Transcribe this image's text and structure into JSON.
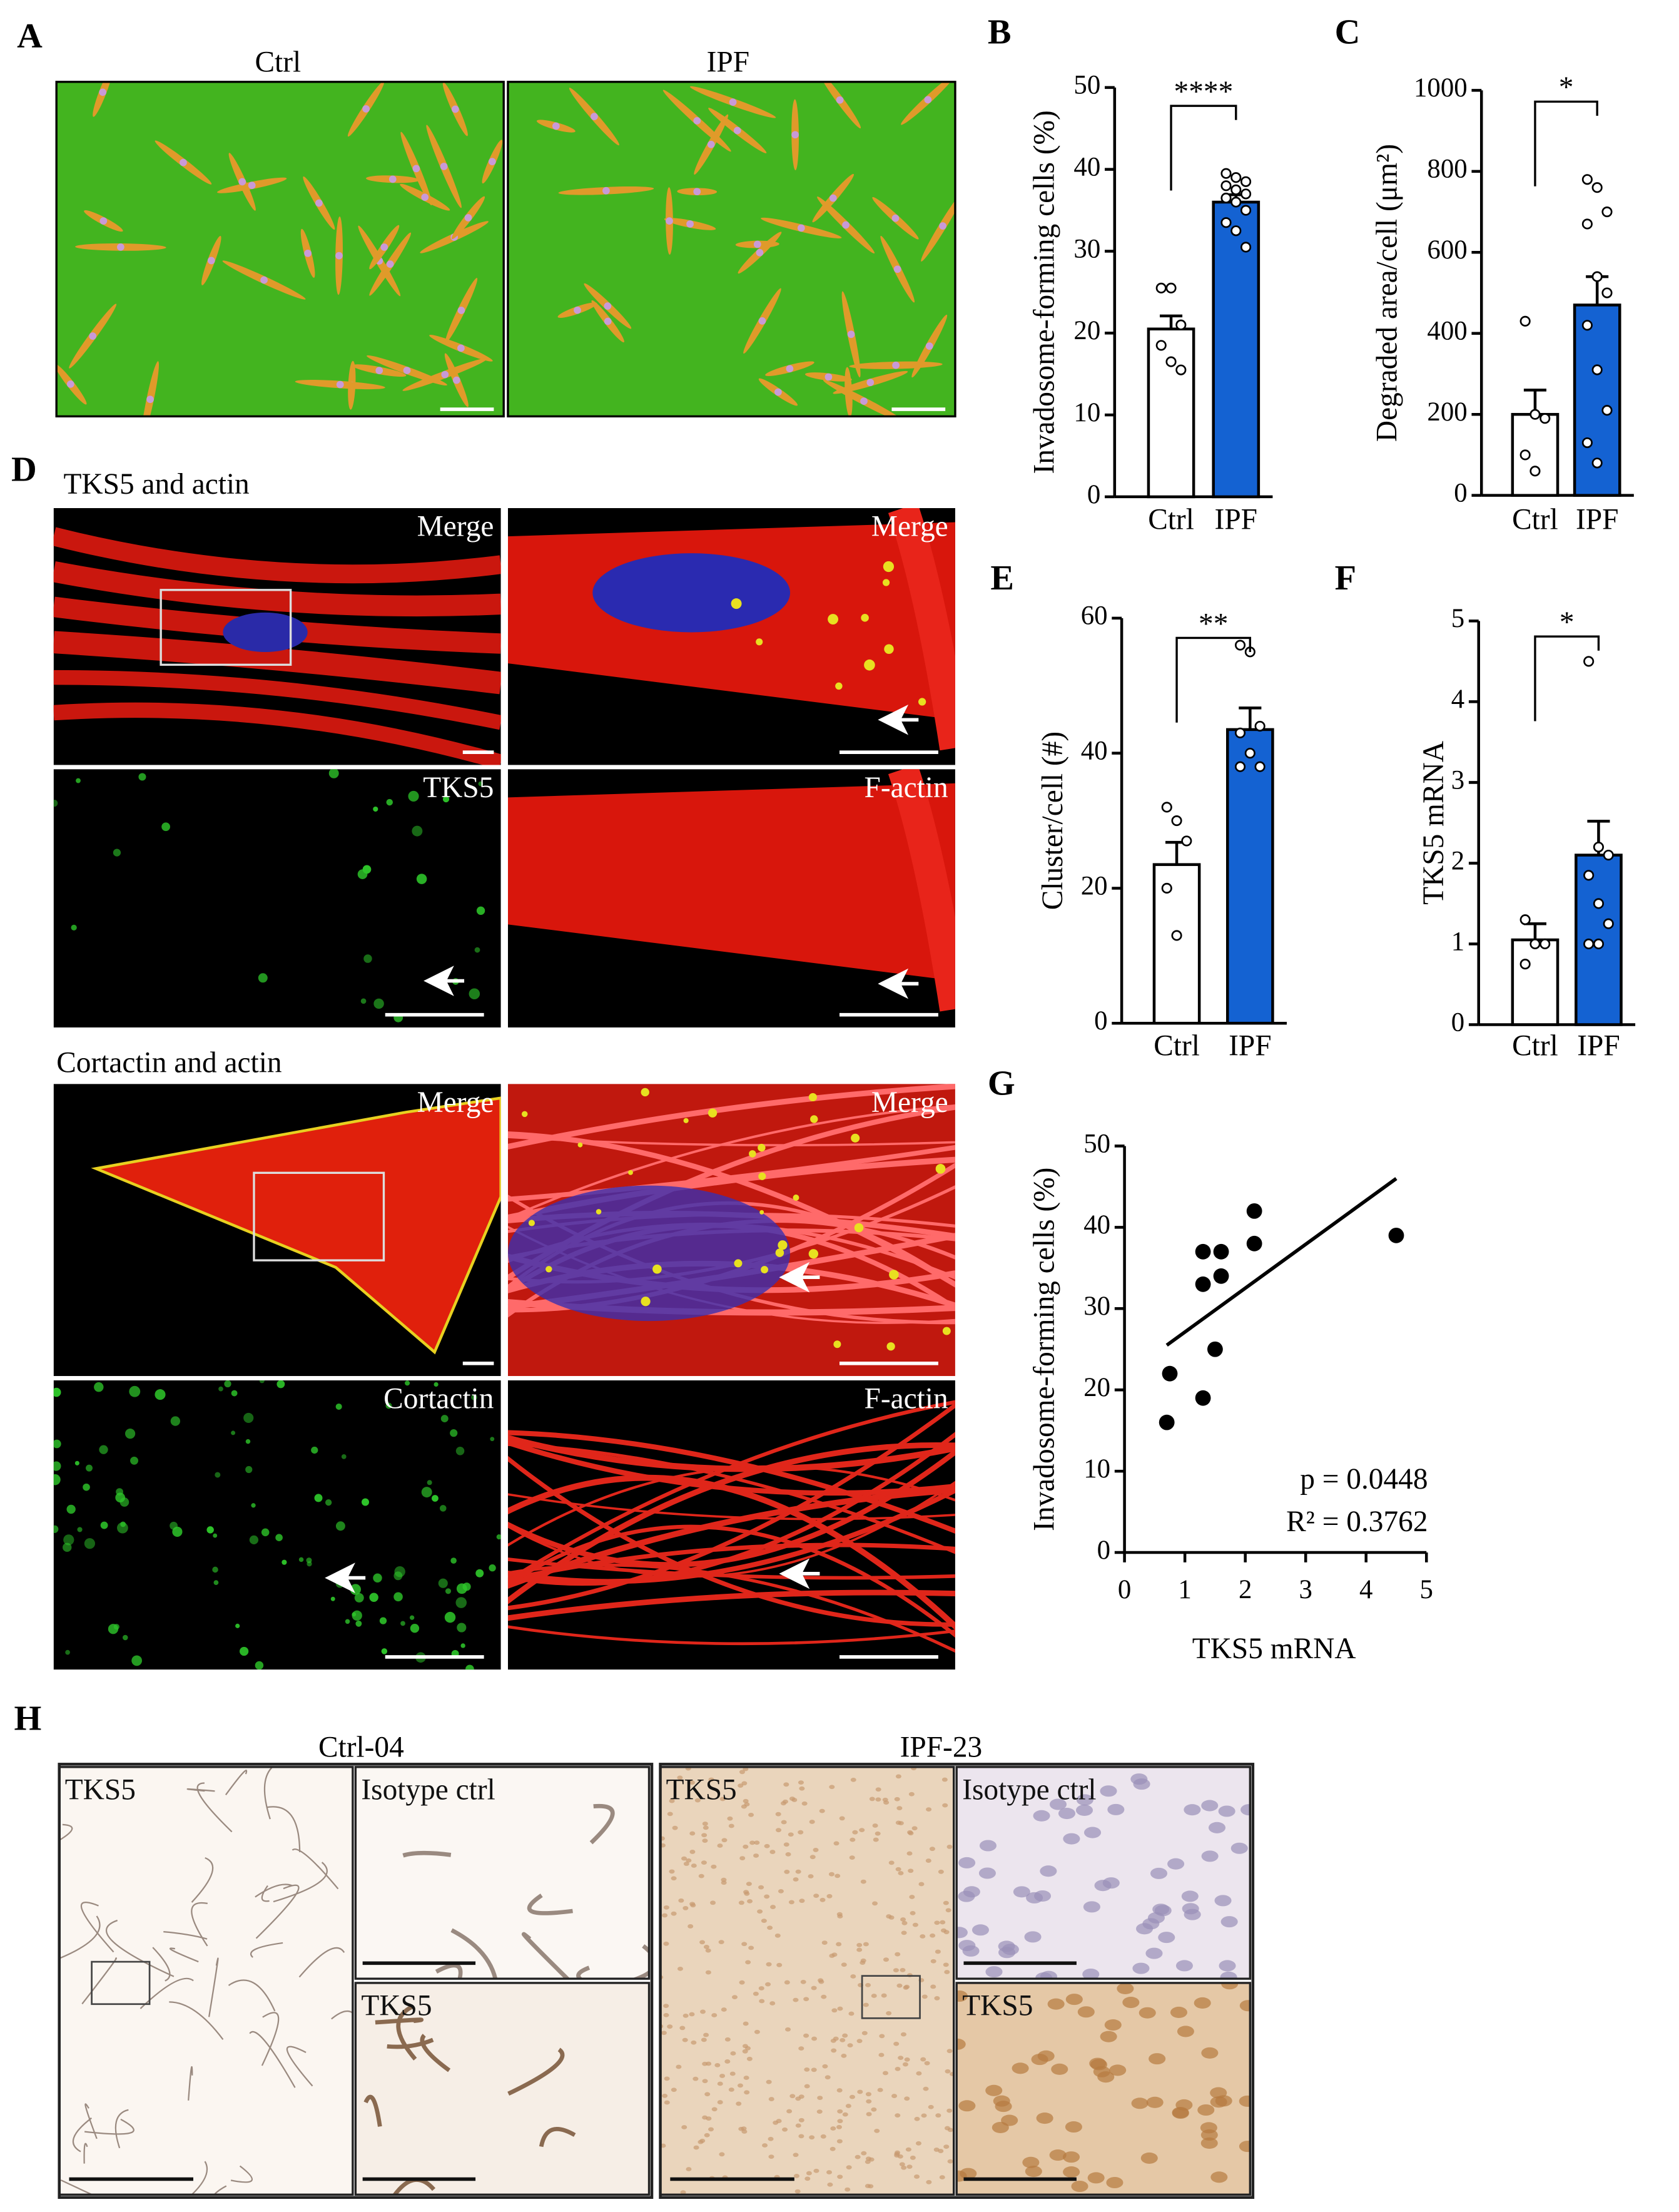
{
  "figure": {
    "A": {
      "letter": "A",
      "titles": [
        "Ctrl",
        "IPF"
      ]
    },
    "D": {
      "letter": "D",
      "sections": [
        {
          "title": "TKS5 and actin",
          "labels": [
            "Merge",
            "Merge",
            "TKS5",
            "F-actin"
          ]
        },
        {
          "title": "Cortactin and actin",
          "labels": [
            "Merge",
            "Merge",
            "Cortactin",
            "F-actin"
          ]
        }
      ]
    },
    "H": {
      "letter": "H",
      "groups": [
        {
          "title": "Ctrl-04",
          "labels": [
            "TKS5",
            "Isotype ctrl",
            "TKS5"
          ]
        },
        {
          "title": "IPF-23",
          "labels": [
            "TKS5",
            "Isotype ctrl",
            "TKS5"
          ]
        }
      ]
    }
  },
  "chart_data": [
    {
      "type": "bar",
      "letter": "B",
      "categories": [
        "Ctrl",
        "IPF"
      ],
      "values": [
        20.5,
        36
      ],
      "errors": [
        1.6,
        0.9
      ],
      "points": [
        [
          25.5,
          25.5,
          21,
          18.5,
          16.5,
          15.5
        ],
        [
          39.5,
          39,
          38.5,
          38,
          37.5,
          37,
          36.5,
          36,
          35,
          33.5,
          32.5,
          30.5
        ]
      ],
      "colors": [
        "#ffffff",
        "#1462d2"
      ],
      "ylabel": "Invadosome-forming cells (%)",
      "significance": "****",
      "ylim": [
        0,
        50
      ],
      "yticks": [
        0,
        10,
        20,
        30,
        40,
        50
      ]
    },
    {
      "type": "bar",
      "letter": "C",
      "categories": [
        "Ctrl",
        "IPF"
      ],
      "values": [
        200,
        470
      ],
      "errors": [
        60,
        70
      ],
      "points": [
        [
          430,
          200,
          190,
          100,
          60
        ],
        [
          780,
          760,
          700,
          670,
          540,
          500,
          420,
          310,
          210,
          130,
          80
        ]
      ],
      "colors": [
        "#ffffff",
        "#1462d2"
      ],
      "ylabel": "Degraded area/cell (μm²)",
      "significance": "*",
      "ylim": [
        0,
        1000
      ],
      "yticks": [
        0,
        200,
        400,
        600,
        800,
        1000
      ]
    },
    {
      "type": "bar",
      "letter": "E",
      "categories": [
        "Ctrl",
        "IPF"
      ],
      "values": [
        23.5,
        43.5
      ],
      "errors": [
        3.3,
        3.2
      ],
      "points": [
        [
          32,
          30,
          27,
          20,
          13
        ],
        [
          56,
          55,
          44,
          43,
          40,
          38,
          38
        ]
      ],
      "colors": [
        "#ffffff",
        "#1462d2"
      ],
      "ylabel": "Cluster/cell (#)",
      "significance": "**",
      "ylim": [
        0,
        60
      ],
      "yticks": [
        0,
        20,
        40,
        60
      ]
    },
    {
      "type": "bar",
      "letter": "F",
      "categories": [
        "Ctrl",
        "IPF"
      ],
      "values": [
        1.05,
        2.1
      ],
      "errors": [
        0.2,
        0.42
      ],
      "points": [
        [
          1.3,
          1.0,
          1.0,
          0.75
        ],
        [
          4.5,
          2.2,
          2.1,
          1.85,
          1.5,
          1.25,
          1.0,
          1.0
        ]
      ],
      "colors": [
        "#ffffff",
        "#1462d2"
      ],
      "ylabel": "TKS5 mRNA",
      "significance": "*",
      "ylim": [
        0,
        5
      ],
      "yticks": [
        0,
        1,
        2,
        3,
        4,
        5
      ]
    },
    {
      "type": "scatter",
      "letter": "G",
      "x": [
        0.7,
        0.75,
        1.3,
        1.3,
        1.3,
        1.6,
        1.6,
        1.5,
        2.15,
        2.15,
        4.5
      ],
      "y": [
        16,
        22,
        19,
        33,
        37,
        37,
        34,
        25,
        42,
        38,
        39
      ],
      "color": "#000000",
      "fit": {
        "x": [
          0.7,
          4.5
        ],
        "y": [
          25.5,
          46
        ]
      },
      "xlabel": "TKS5 mRNA",
      "ylabel": "Invadosome-forming cells (%)",
      "annotations": [
        "p = 0.0448",
        "R² = 0.3762"
      ],
      "xlim": [
        0,
        5
      ],
      "ylim": [
        0,
        50
      ],
      "xticks": [
        0,
        1,
        2,
        3,
        4,
        5
      ],
      "yticks": [
        0,
        10,
        20,
        30,
        40,
        50
      ]
    }
  ]
}
